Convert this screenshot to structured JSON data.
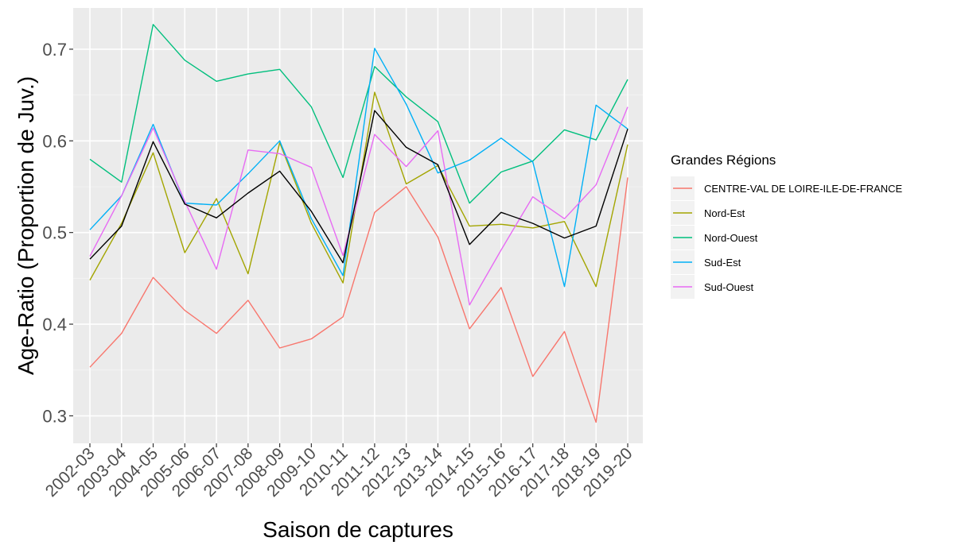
{
  "chart_data": {
    "type": "line",
    "xlabel": "Saison de captures",
    "ylabel": "Age-Ratio (Proportion de Juv.)",
    "categories": [
      "2002-03",
      "2003-04",
      "2004-05",
      "2005-06",
      "2006-07",
      "2007-08",
      "2008-09",
      "2009-10",
      "2010-11",
      "2011-12",
      "2012-13",
      "2013-14",
      "2014-15",
      "2015-16",
      "2016-17",
      "2017-18",
      "2018-19",
      "2019-20"
    ],
    "ylim": [
      0.27,
      0.745
    ],
    "yticks": [
      0.3,
      0.4,
      0.5,
      0.6,
      0.7
    ],
    "ytick_labels": [
      "0.3",
      "0.4",
      "0.5",
      "0.6",
      "0.7"
    ],
    "grid": true,
    "legend": {
      "title": "Grandes Régions",
      "position": "right"
    },
    "series": [
      {
        "name": "CENTRE-VAL DE LOIRE-ILE-DE-FRANCE",
        "color": "#F8766D",
        "values": [
          0.353,
          0.39,
          0.451,
          0.415,
          0.39,
          0.426,
          0.374,
          0.384,
          0.408,
          0.522,
          0.55,
          0.495,
          0.395,
          0.44,
          0.343,
          0.392,
          0.293,
          0.56
        ]
      },
      {
        "name": "Nord-Est",
        "color": "#A3A500",
        "values": [
          0.448,
          0.51,
          0.587,
          0.478,
          0.537,
          0.455,
          0.598,
          0.51,
          0.445,
          0.653,
          0.553,
          0.573,
          0.507,
          0.509,
          0.505,
          0.512,
          0.441,
          0.596
        ]
      },
      {
        "name": "Nord-Ouest",
        "color": "#00BF7D",
        "values": [
          0.58,
          0.555,
          0.727,
          0.688,
          0.665,
          0.673,
          0.678,
          0.637,
          0.56,
          0.681,
          0.648,
          0.621,
          0.532,
          0.566,
          0.578,
          0.612,
          0.601,
          0.667
        ]
      },
      {
        "name": "Sud-Est",
        "color": "#00B0F6",
        "values": [
          0.503,
          0.54,
          0.618,
          0.532,
          0.53,
          0.564,
          0.6,
          0.515,
          0.453,
          0.701,
          0.64,
          0.565,
          0.579,
          0.603,
          0.577,
          0.441,
          0.639,
          0.613
        ]
      },
      {
        "name": "Sud-Ouest",
        "color": "#E76BF3",
        "values": [
          0.474,
          0.54,
          0.614,
          0.534,
          0.46,
          0.59,
          0.586,
          0.571,
          0.475,
          0.607,
          0.572,
          0.611,
          0.421,
          0.481,
          0.539,
          0.515,
          0.552,
          0.637
        ]
      },
      {
        "color": "#000000",
        "values": [
          0.471,
          0.507,
          0.599,
          0.531,
          0.516,
          0.543,
          0.567,
          0.523,
          0.467,
          0.633,
          0.593,
          0.574,
          0.487,
          0.522,
          0.51,
          0.494,
          0.507,
          0.613
        ]
      }
    ]
  }
}
